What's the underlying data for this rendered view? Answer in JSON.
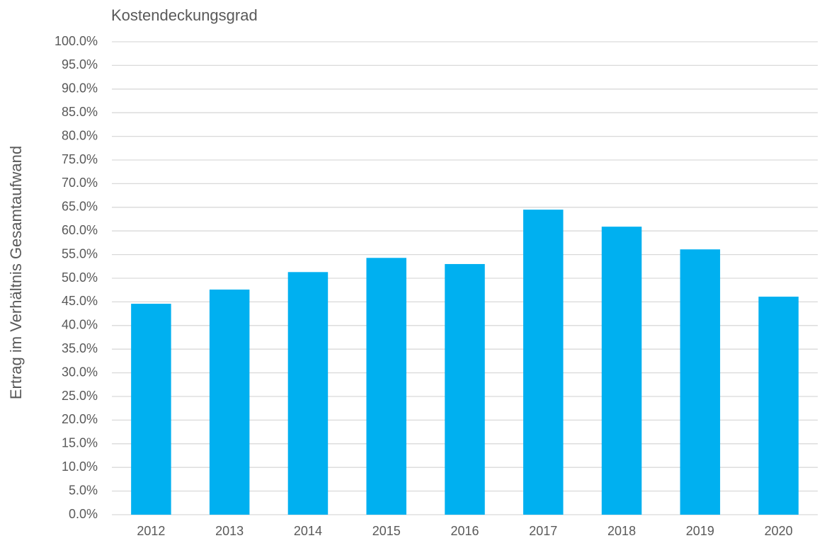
{
  "chart_data": {
    "type": "bar",
    "title": "Kostendeckungsgrad",
    "y_label": "Ertrag im Verhältnis Gesamtaufwand",
    "categories": [
      "2012",
      "2013",
      "2014",
      "2015",
      "2016",
      "2017",
      "2018",
      "2019",
      "2020"
    ],
    "values": [
      44.6,
      47.6,
      51.3,
      54.3,
      53.0,
      64.5,
      60.9,
      56.1,
      46.1
    ],
    "color": "#00b0f0",
    "ylim": [
      0,
      100
    ],
    "yticks": [
      {
        "value": 0,
        "label": "0.0%"
      },
      {
        "value": 5,
        "label": "5.0%"
      },
      {
        "value": 10,
        "label": "10.0%"
      },
      {
        "value": 15,
        "label": "15.0%"
      },
      {
        "value": 20,
        "label": "20.0%"
      },
      {
        "value": 25,
        "label": "25.0%"
      },
      {
        "value": 30,
        "label": "30.0%"
      },
      {
        "value": 35,
        "label": "35.0%"
      },
      {
        "value": 40,
        "label": "40.0%"
      },
      {
        "value": 45,
        "label": "45.0%"
      },
      {
        "value": 50,
        "label": "50.0%"
      },
      {
        "value": 55,
        "label": "55.0%"
      },
      {
        "value": 60,
        "label": "60.0%"
      },
      {
        "value": 65,
        "label": "65.0%"
      },
      {
        "value": 70,
        "label": "70.0%"
      },
      {
        "value": 75,
        "label": "75.0%"
      },
      {
        "value": 80,
        "label": "80.0%"
      },
      {
        "value": 85,
        "label": "85.0%"
      },
      {
        "value": 90,
        "label": "90.0%"
      },
      {
        "value": 95,
        "label": "95.0%"
      },
      {
        "value": 100,
        "label": "100.0%"
      }
    ],
    "grid": true
  }
}
